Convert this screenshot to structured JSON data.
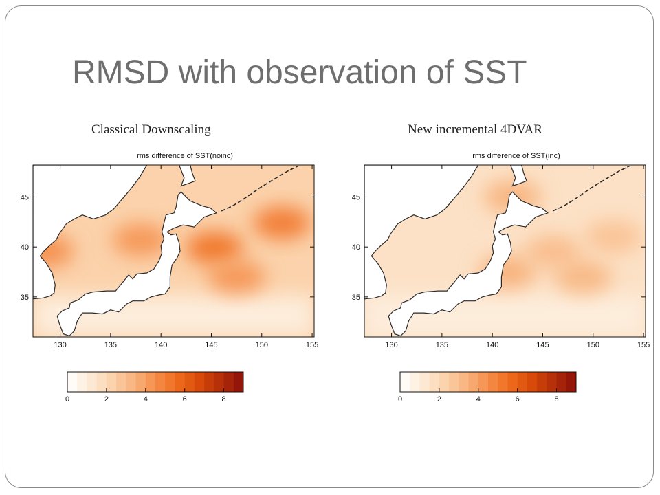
{
  "slide": {
    "title": "RMSD with observation  of SST"
  },
  "panels": {
    "left": {
      "caption": "Classical Downscaling",
      "plot_title": "rms difference of SST(noinc)"
    },
    "right": {
      "caption": "New incremental 4DVAR",
      "plot_title": "rms difference of SST(inc)"
    }
  },
  "colors": {
    "title": "#6e6e6e",
    "frame": "#8a8a8a",
    "land": "#ffffff",
    "coast": "#2a2a2a",
    "scale": [
      "#ffffff",
      "#fdebd8",
      "#fbd3ad",
      "#f8b47f",
      "#f58f4c",
      "#ee6b1c",
      "#d84a0a",
      "#b22d0a",
      "#8a0f08"
    ]
  },
  "chart_data": [
    {
      "type": "heatmap",
      "title": "rms difference of SST(noinc)",
      "xlabel": "",
      "ylabel": "",
      "x_ticks": [
        130,
        135,
        140,
        145,
        150,
        155
      ],
      "y_ticks": [
        35,
        40,
        45
      ],
      "xlim": [
        127.3,
        155.2
      ],
      "ylim": [
        31.0,
        48.2
      ],
      "colorbar": {
        "ticks": [
          0,
          2,
          4,
          6,
          8
        ],
        "range": [
          0,
          9
        ],
        "units": ""
      },
      "hotspots": [
        {
          "lon": 145.3,
          "lat": 39.9,
          "value": 5.2
        },
        {
          "lon": 152.0,
          "lat": 42.4,
          "value": 5.0
        },
        {
          "lon": 138.0,
          "lat": 40.7,
          "value": 4.2
        },
        {
          "lon": 128.5,
          "lat": 39.6,
          "value": 4.4
        },
        {
          "lon": 147.5,
          "lat": 37.0,
          "value": 4.2
        }
      ],
      "background_value": 2.3,
      "southern_value": 1.0
    },
    {
      "type": "heatmap",
      "title": "rms difference of SST(inc)",
      "xlabel": "",
      "ylabel": "",
      "x_ticks": [
        130,
        135,
        140,
        145,
        150,
        155
      ],
      "y_ticks": [
        35,
        40,
        45
      ],
      "xlim": [
        127.3,
        155.2
      ],
      "ylim": [
        31.0,
        48.2
      ],
      "colorbar": {
        "ticks": [
          0,
          2,
          4,
          6,
          8
        ],
        "range": [
          0,
          9
        ],
        "units": ""
      },
      "hotspots": [
        {
          "lon": 141.5,
          "lat": 37.5,
          "value": 3.4
        },
        {
          "lon": 146.0,
          "lat": 39.5,
          "value": 3.0
        },
        {
          "lon": 149.0,
          "lat": 37.0,
          "value": 3.2
        },
        {
          "lon": 152.0,
          "lat": 41.0,
          "value": 2.8
        },
        {
          "lon": 142.0,
          "lat": 45.0,
          "value": 3.3
        }
      ],
      "background_value": 1.6,
      "southern_value": 1.0
    }
  ]
}
